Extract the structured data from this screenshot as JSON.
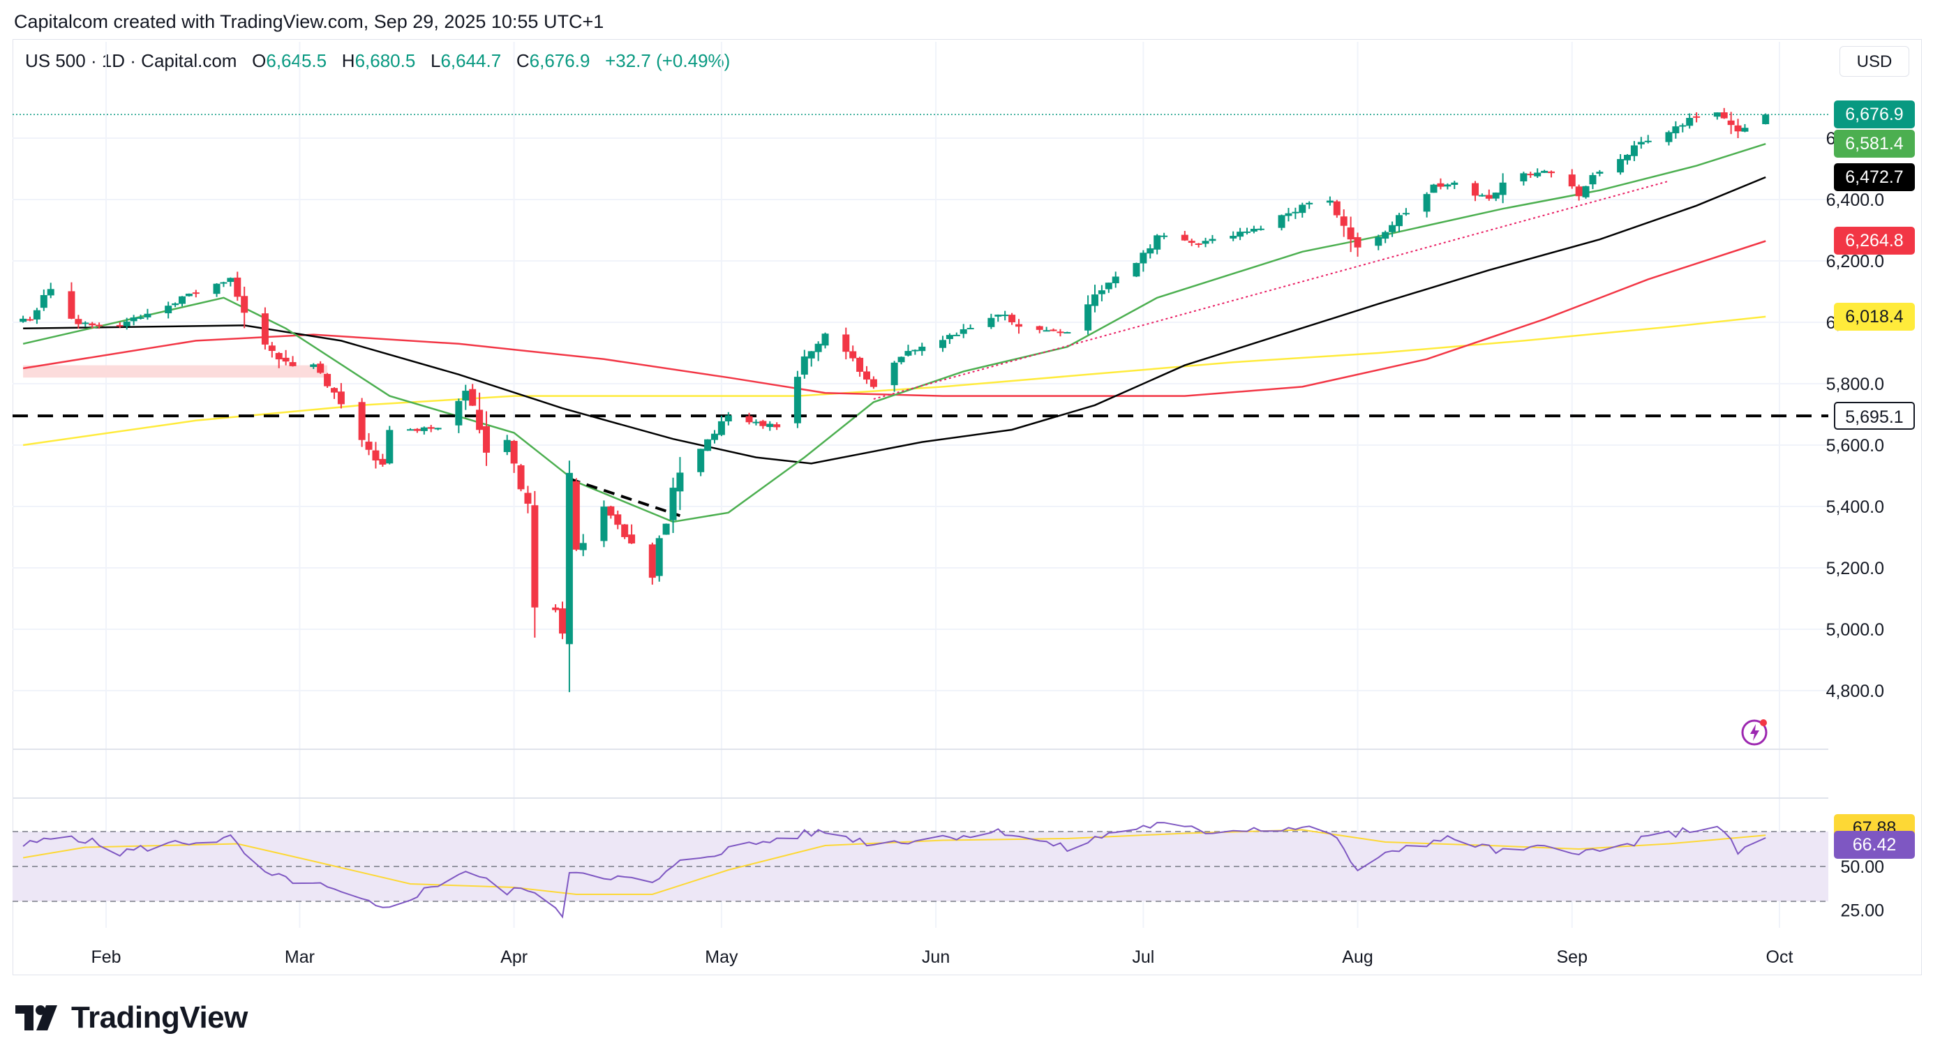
{
  "header": {
    "credit": "Capitalcom created with TradingView.com, Sep 29, 2025 10:55 UTC+1"
  },
  "legend": {
    "symbol": "US 500 · 1D · Capital.com",
    "o_label": "O",
    "o_value": "6,645.5",
    "h_label": "H",
    "h_value": "6,680.5",
    "l_label": "L",
    "l_value": "6,644.7",
    "c_label": "C",
    "c_value": "6,676.9",
    "change": "+32.7 (+0.49%)"
  },
  "currency_button": "USD",
  "price_tags": [
    {
      "text": "6,676.9",
      "value": 6676.9,
      "bg": "#089981",
      "fg": "#ffffff"
    },
    {
      "text": "6,581.4",
      "value": 6581.4,
      "bg": "#4caf50",
      "fg": "#ffffff"
    },
    {
      "text": "6,472.7",
      "value": 6472.7,
      "bg": "#000000",
      "fg": "#ffffff"
    },
    {
      "text": "6,264.8",
      "value": 6264.8,
      "bg": "#f23645",
      "fg": "#ffffff"
    },
    {
      "text": "6,018.4",
      "value": 6018.4,
      "bg": "#ffeb3b",
      "fg": "#131722"
    },
    {
      "text": "5,695.1",
      "value": 5695.1,
      "bg": "#ffffff",
      "fg": "#131722",
      "border": "#131722"
    }
  ],
  "rsi_tags": [
    {
      "text": "67.88",
      "value": 67.88,
      "bg": "#fdd835",
      "fg": "#131722"
    },
    {
      "text": "66.42",
      "value": 66.42,
      "bg": "#7e57c2",
      "fg": "#ffffff"
    }
  ],
  "brand": {
    "logo_text": "TradingView"
  },
  "colors": {
    "up": "#089981",
    "down": "#f23645",
    "ema20": "#4caf50",
    "ema50": "#000000",
    "ema100": "#f23645",
    "ema200": "#ffeb3b",
    "rsi": "#7e57c2",
    "rsi_ma": "#fdd835",
    "rsi_band": "#ede7f6",
    "trendline": "#e91e63",
    "resistance_zone": "#fcdcdc"
  },
  "chart_data": {
    "type": "candlestick",
    "symbol": "US 500",
    "interval": "1D",
    "currency": "USD",
    "y_axis": {
      "min": 4700,
      "max": 6780,
      "ticks": [
        4800,
        5000,
        5200,
        5400,
        5600,
        5800,
        6000,
        6200,
        6400,
        6600
      ]
    },
    "y_tick_labels": [
      "4,800.0",
      "5,000.0",
      "5,200.0",
      "5,400.0",
      "5,600.0",
      "5,800.0",
      "6,000.0",
      "6,200.0",
      "6,400.0",
      "6,600.0"
    ],
    "x_axis": {
      "start": "2025-01-20",
      "end": "2025-10-05",
      "months": [
        {
          "label": "Feb",
          "date": "2025-02-01"
        },
        {
          "label": "Mar",
          "date": "2025-03-01"
        },
        {
          "label": "Apr",
          "date": "2025-04-01"
        },
        {
          "label": "May",
          "date": "2025-05-01"
        },
        {
          "label": "Jun",
          "date": "2025-06-01"
        },
        {
          "label": "Jul",
          "date": "2025-07-01"
        },
        {
          "label": "Aug",
          "date": "2025-08-01"
        },
        {
          "label": "Sep",
          "date": "2025-09-01"
        },
        {
          "label": "Oct",
          "date": "2025-10-01"
        }
      ]
    },
    "ohlc_anchors": [
      [
        "2025-01-21",
        6010
      ],
      [
        "2025-01-24",
        6110
      ],
      [
        "2025-01-27",
        6000
      ],
      [
        "2025-02-03",
        5990
      ],
      [
        "2025-02-07",
        6030
      ],
      [
        "2025-02-11",
        6070
      ],
      [
        "2025-02-19",
        6140
      ],
      [
        "2025-02-21",
        6020
      ],
      [
        "2025-02-27",
        5860
      ],
      [
        "2025-03-03",
        5860
      ],
      [
        "2025-03-10",
        5620
      ],
      [
        "2025-03-13",
        5530
      ],
      [
        "2025-03-14",
        5640
      ],
      [
        "2025-03-21",
        5660
      ],
      [
        "2025-03-25",
        5790
      ],
      [
        "2025-03-28",
        5590
      ],
      [
        "2025-03-31",
        5620
      ],
      [
        "2025-04-03",
        5400
      ],
      [
        "2025-04-04",
        5070
      ],
      [
        "2025-04-07",
        5060
      ],
      [
        "2025-04-08",
        4990
      ],
      [
        "2025-04-09",
        5480
      ],
      [
        "2025-04-10",
        5270
      ],
      [
        "2025-04-14",
        5400
      ],
      [
        "2025-04-21",
        5160
      ],
      [
        "2025-04-22",
        5290
      ],
      [
        "2025-04-25",
        5520
      ],
      [
        "2025-05-02",
        5690
      ],
      [
        "2025-05-09",
        5660
      ],
      [
        "2025-05-12",
        5850
      ],
      [
        "2025-05-16",
        5960
      ],
      [
        "2025-05-21",
        5850
      ],
      [
        "2025-05-23",
        5800
      ],
      [
        "2025-05-28",
        5900
      ],
      [
        "2025-06-04",
        5960
      ],
      [
        "2025-06-11",
        6030
      ],
      [
        "2025-06-13",
        5980
      ],
      [
        "2025-06-20",
        5970
      ],
      [
        "2025-06-24",
        6090
      ],
      [
        "2025-06-30",
        6200
      ],
      [
        "2025-07-03",
        6280
      ],
      [
        "2025-07-09",
        6260
      ],
      [
        "2025-07-17",
        6300
      ],
      [
        "2025-07-24",
        6380
      ],
      [
        "2025-07-28",
        6400
      ],
      [
        "2025-08-01",
        6230
      ],
      [
        "2025-08-05",
        6300
      ],
      [
        "2025-08-12",
        6440
      ],
      [
        "2025-08-15",
        6450
      ],
      [
        "2025-08-20",
        6400
      ],
      [
        "2025-08-22",
        6460
      ],
      [
        "2025-08-28",
        6500
      ],
      [
        "2025-09-02",
        6420
      ],
      [
        "2025-09-05",
        6490
      ],
      [
        "2025-09-11",
        6580
      ],
      [
        "2025-09-19",
        6670
      ],
      [
        "2025-09-22",
        6690
      ],
      [
        "2025-09-25",
        6610
      ],
      [
        "2025-09-26",
        6640
      ],
      [
        "2025-09-29",
        6676.9
      ]
    ],
    "last_candle": {
      "date": "2025-09-29",
      "open": 6645.5,
      "high": 6680.5,
      "low": 6644.7,
      "close": 6676.9
    },
    "moving_averages": [
      {
        "name": "EMA 20",
        "color": "#4caf50",
        "last": 6581.4,
        "points": [
          [
            "2025-01-20",
            5930
          ],
          [
            "2025-02-18",
            6080
          ],
          [
            "2025-02-27",
            5980
          ],
          [
            "2025-03-14",
            5760
          ],
          [
            "2025-04-01",
            5640
          ],
          [
            "2025-04-10",
            5480
          ],
          [
            "2025-04-24",
            5350
          ],
          [
            "2025-05-02",
            5380
          ],
          [
            "2025-05-13",
            5560
          ],
          [
            "2025-05-23",
            5740
          ],
          [
            "2025-06-05",
            5840
          ],
          [
            "2025-06-20",
            5920
          ],
          [
            "2025-07-03",
            6080
          ],
          [
            "2025-07-24",
            6230
          ],
          [
            "2025-08-04",
            6280
          ],
          [
            "2025-08-22",
            6370
          ],
          [
            "2025-09-05",
            6430
          ],
          [
            "2025-09-19",
            6510
          ],
          [
            "2025-09-29",
            6581.4
          ]
        ]
      },
      {
        "name": "EMA 50",
        "color": "#000000",
        "last": 6472.7,
        "points": [
          [
            "2025-01-20",
            5980
          ],
          [
            "2025-02-21",
            5990
          ],
          [
            "2025-03-07",
            5940
          ],
          [
            "2025-03-24",
            5830
          ],
          [
            "2025-04-08",
            5720
          ],
          [
            "2025-04-24",
            5620
          ],
          [
            "2025-05-06",
            5560
          ],
          [
            "2025-05-14",
            5540
          ],
          [
            "2025-05-30",
            5610
          ],
          [
            "2025-06-12",
            5650
          ],
          [
            "2025-06-24",
            5730
          ],
          [
            "2025-07-07",
            5860
          ],
          [
            "2025-07-21",
            5960
          ],
          [
            "2025-08-04",
            6060
          ],
          [
            "2025-08-20",
            6170
          ],
          [
            "2025-09-05",
            6270
          ],
          [
            "2025-09-19",
            6380
          ],
          [
            "2025-09-29",
            6472.7
          ]
        ]
      },
      {
        "name": "EMA 100",
        "color": "#f23645",
        "last": 6264.8,
        "points": [
          [
            "2025-01-20",
            5850
          ],
          [
            "2025-02-14",
            5940
          ],
          [
            "2025-03-03",
            5960
          ],
          [
            "2025-03-24",
            5930
          ],
          [
            "2025-04-14",
            5880
          ],
          [
            "2025-05-02",
            5820
          ],
          [
            "2025-05-16",
            5770
          ],
          [
            "2025-06-02",
            5760
          ],
          [
            "2025-06-20",
            5760
          ],
          [
            "2025-07-07",
            5760
          ],
          [
            "2025-07-24",
            5790
          ],
          [
            "2025-08-11",
            5880
          ],
          [
            "2025-08-28",
            6010
          ],
          [
            "2025-09-12",
            6140
          ],
          [
            "2025-09-29",
            6264.8
          ]
        ]
      },
      {
        "name": "EMA 200",
        "color": "#ffeb3b",
        "last": 6018.4,
        "points": [
          [
            "2025-01-20",
            5600
          ],
          [
            "2025-02-14",
            5680
          ],
          [
            "2025-03-10",
            5730
          ],
          [
            "2025-04-01",
            5760
          ],
          [
            "2025-04-21",
            5760
          ],
          [
            "2025-05-12",
            5760
          ],
          [
            "2025-06-02",
            5790
          ],
          [
            "2025-06-23",
            5830
          ],
          [
            "2025-07-14",
            5870
          ],
          [
            "2025-08-04",
            5900
          ],
          [
            "2025-08-25",
            5940
          ],
          [
            "2025-09-15",
            5985
          ],
          [
            "2025-09-29",
            6018.4
          ]
        ]
      }
    ],
    "horizontal_level": {
      "value": 5695.1,
      "style": "dashed"
    },
    "current_price_line": 6676.9,
    "trendline": {
      "from": [
        "2025-05-23",
        5750
      ],
      "to": [
        "2025-09-15",
        6460
      ],
      "style": "dotted"
    },
    "descending_line": {
      "from": [
        "2025-04-09",
        5490
      ],
      "to": [
        "2025-04-25",
        5370
      ],
      "style": "dashed"
    },
    "resistance_zone": {
      "from": "2025-01-20",
      "to": "2025-03-05",
      "low": 5820,
      "high": 5860
    },
    "rsi": {
      "name": "RSI",
      "color": "#7e57c2",
      "last": 66.42,
      "ma_name": "RSI MA",
      "ma_color": "#fdd835",
      "ma_last": 67.88,
      "upper_band": 70,
      "middle": 50,
      "lower_band": 30,
      "ticks": [
        25,
        50
      ],
      "tick_labels": [
        "25.00",
        "50.00"
      ],
      "points": [
        [
          "2025-01-20",
          62
        ],
        [
          "2025-01-27",
          68
        ],
        [
          "2025-02-03",
          58
        ],
        [
          "2025-02-10",
          63
        ],
        [
          "2025-02-19",
          66
        ],
        [
          "2025-02-24",
          45
        ],
        [
          "2025-03-03",
          40
        ],
        [
          "2025-03-10",
          30
        ],
        [
          "2025-03-13",
          25
        ],
        [
          "2025-03-20",
          38
        ],
        [
          "2025-03-25",
          48
        ],
        [
          "2025-03-31",
          35
        ],
        [
          "2025-04-03",
          38
        ],
        [
          "2025-04-07",
          24
        ],
        [
          "2025-04-08",
          22
        ],
        [
          "2025-04-09",
          48
        ],
        [
          "2025-04-14",
          45
        ],
        [
          "2025-04-21",
          40
        ],
        [
          "2025-04-25",
          52
        ],
        [
          "2025-05-02",
          60
        ],
        [
          "2025-05-12",
          68
        ],
        [
          "2025-05-16",
          70
        ],
        [
          "2025-05-23",
          63
        ],
        [
          "2025-06-02",
          67
        ],
        [
          "2025-06-11",
          70
        ],
        [
          "2025-06-20",
          60
        ],
        [
          "2025-06-27",
          70
        ],
        [
          "2025-07-03",
          74
        ],
        [
          "2025-07-10",
          70
        ],
        [
          "2025-07-17",
          72
        ],
        [
          "2025-07-24",
          72
        ],
        [
          "2025-07-28",
          70
        ],
        [
          "2025-08-01",
          48
        ],
        [
          "2025-08-08",
          62
        ],
        [
          "2025-08-15",
          66
        ],
        [
          "2025-08-22",
          58
        ],
        [
          "2025-08-29",
          61
        ],
        [
          "2025-09-05",
          58
        ],
        [
          "2025-09-12",
          66
        ],
        [
          "2025-09-22",
          74
        ],
        [
          "2025-09-25",
          58
        ],
        [
          "2025-09-29",
          66.42
        ]
      ],
      "ma_points": [
        [
          "2025-01-20",
          55
        ],
        [
          "2025-01-29",
          61
        ],
        [
          "2025-02-20",
          63
        ],
        [
          "2025-03-03",
          53
        ],
        [
          "2025-03-17",
          40
        ],
        [
          "2025-04-01",
          38
        ],
        [
          "2025-04-10",
          34
        ],
        [
          "2025-04-21",
          34
        ],
        [
          "2025-05-02",
          48
        ],
        [
          "2025-05-16",
          62
        ],
        [
          "2025-06-02",
          65
        ],
        [
          "2025-06-20",
          66
        ],
        [
          "2025-07-07",
          69
        ],
        [
          "2025-07-24",
          71
        ],
        [
          "2025-08-05",
          64
        ],
        [
          "2025-08-20",
          62
        ],
        [
          "2025-09-02",
          60
        ],
        [
          "2025-09-15",
          63
        ],
        [
          "2025-09-29",
          67.88
        ]
      ]
    }
  }
}
